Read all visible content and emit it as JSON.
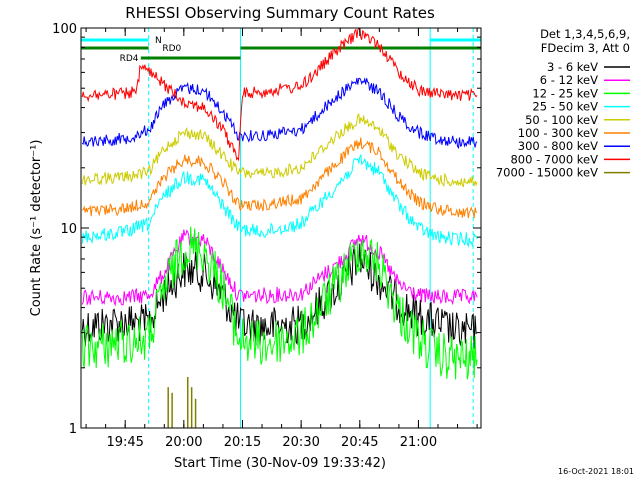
{
  "chart_data": {
    "type": "line",
    "title": "RHESSI Observing Summary Count Rates",
    "xlabel": "Start Time (30-Nov-09 19:33:42)",
    "ylabel": "Count Rate (s⁻¹ detector⁻¹)",
    "y_scale": "log",
    "ylim": [
      1,
      100
    ],
    "xlim": [
      "19:33:42",
      "21:16:00"
    ],
    "x_ticks": [
      "19:45",
      "20:00",
      "20:15",
      "20:30",
      "20:45",
      "21:00"
    ],
    "y_ticks": [
      "1",
      "10",
      "100"
    ],
    "timestamp": "16-Oct-2021 18:01",
    "legend": {
      "header_lines": [
        "Det 1,3,4,5,6,9,",
        "FDecim 3, Att 0"
      ],
      "placement": "right"
    },
    "flags": [
      {
        "label": "N",
        "color": "#00ffff",
        "segments": [
          [
            "19:33:42",
            "19:51:00"
          ],
          [
            "21:03:00",
            "21:16:00"
          ]
        ]
      },
      {
        "label": "RD0",
        "color": "#008000",
        "segments": [
          [
            "19:33:42",
            "19:51:00"
          ],
          [
            "20:14:30",
            "21:16:00"
          ]
        ]
      },
      {
        "label": "RD4",
        "color": "#008000",
        "segments": [
          [
            "19:49:00",
            "20:14:30"
          ]
        ]
      }
    ],
    "vlines": [
      {
        "time": "19:51:00",
        "style": "dashed",
        "color": "#00ffff"
      },
      {
        "time": "20:14:30",
        "style": "solid",
        "color": "#00ffff"
      },
      {
        "time": "21:03:00",
        "style": "solid",
        "color": "#00ffff"
      },
      {
        "time": "21:14:00",
        "style": "dashed",
        "color": "#00ffff"
      }
    ],
    "series": [
      {
        "name": "3 - 6 keV",
        "color": "#000000",
        "x": [
          "19:34",
          "19:45",
          "19:51",
          "19:55",
          "20:00",
          "20:05",
          "20:10",
          "20:14",
          "20:20",
          "20:30",
          "20:40",
          "20:45",
          "20:50",
          "20:55",
          "21:00",
          "21:05",
          "21:10",
          "21:15"
        ],
        "y": [
          3.2,
          3.4,
          3.3,
          4.8,
          6.2,
          6.0,
          4.6,
          3.3,
          3.2,
          3.3,
          5.2,
          7.0,
          5.5,
          4.2,
          3.6,
          3.3,
          3.0,
          3.0
        ]
      },
      {
        "name": "6 - 12 keV",
        "color": "#ff00ff",
        "x": [
          "19:34",
          "19:45",
          "19:51",
          "19:55",
          "20:00",
          "20:05",
          "20:10",
          "20:14",
          "20:20",
          "20:30",
          "20:40",
          "20:45",
          "20:50",
          "20:55",
          "21:00",
          "21:05",
          "21:10",
          "21:15"
        ],
        "y": [
          4.5,
          4.5,
          4.6,
          6.0,
          9.0,
          8.8,
          6.2,
          4.6,
          4.6,
          4.7,
          6.8,
          9.0,
          7.5,
          5.2,
          4.6,
          4.5,
          4.5,
          4.5
        ]
      },
      {
        "name": "12 - 25 keV",
        "color": "#00ff00",
        "x": [
          "19:34",
          "19:45",
          "19:51",
          "19:55",
          "20:00",
          "20:05",
          "20:10",
          "20:14",
          "20:20",
          "20:30",
          "20:40",
          "20:45",
          "20:50",
          "20:55",
          "21:00",
          "21:05",
          "21:10",
          "21:15"
        ],
        "y": [
          2.5,
          2.7,
          2.8,
          5.0,
          8.0,
          7.8,
          5.0,
          2.8,
          2.6,
          2.9,
          5.5,
          8.0,
          6.5,
          3.8,
          2.8,
          2.3,
          2.2,
          2.2
        ]
      },
      {
        "name": "25 - 50 keV",
        "color": "#00ffff",
        "x": [
          "19:34",
          "19:45",
          "19:51",
          "19:55",
          "20:00",
          "20:05",
          "20:10",
          "20:14",
          "20:20",
          "20:30",
          "20:40",
          "20:45",
          "20:50",
          "20:55",
          "21:00",
          "21:05",
          "21:10",
          "21:15"
        ],
        "y": [
          9.0,
          9.5,
          10.5,
          14.5,
          18.0,
          17.5,
          13.0,
          10.0,
          9.5,
          10.5,
          17.0,
          22.0,
          19.0,
          13.0,
          10.0,
          9.0,
          8.8,
          8.8
        ]
      },
      {
        "name": "50 - 100 keV",
        "color": "#cccc00",
        "x": [
          "19:34",
          "19:45",
          "19:51",
          "19:55",
          "20:00",
          "20:05",
          "20:10",
          "20:14",
          "20:20",
          "20:30",
          "20:40",
          "20:45",
          "20:50",
          "20:55",
          "21:00",
          "21:05",
          "21:10",
          "21:15"
        ],
        "y": [
          17.5,
          18.0,
          19.0,
          25.0,
          30.0,
          29.0,
          23.0,
          19.0,
          18.5,
          20.0,
          30.0,
          35.0,
          31.0,
          23.0,
          19.0,
          17.5,
          17.0,
          17.0
        ]
      },
      {
        "name": "100 - 300 keV",
        "color": "#ff8000",
        "x": [
          "19:34",
          "19:45",
          "19:51",
          "19:55",
          "20:00",
          "20:05",
          "20:10",
          "20:14",
          "20:20",
          "20:30",
          "20:40",
          "20:45",
          "20:50",
          "20:55",
          "21:00",
          "21:05",
          "21:10",
          "21:15"
        ],
        "y": [
          12.0,
          12.5,
          13.5,
          18.0,
          22.0,
          21.5,
          17.0,
          13.0,
          13.0,
          14.0,
          22.0,
          27.0,
          24.0,
          17.0,
          13.5,
          12.5,
          12.0,
          12.0
        ]
      },
      {
        "name": "300 - 800 keV",
        "color": "#0000ff",
        "x": [
          "19:34",
          "19:45",
          "19:51",
          "19:55",
          "20:00",
          "20:05",
          "20:10",
          "20:14",
          "20:20",
          "20:30",
          "20:40",
          "20:45",
          "20:50",
          "20:55",
          "21:00",
          "21:05",
          "21:10",
          "21:15"
        ],
        "y": [
          27.0,
          28.0,
          31.0,
          42.0,
          50.0,
          49.0,
          38.0,
          29.0,
          29.0,
          31.0,
          47.0,
          55.0,
          48.0,
          36.0,
          30.0,
          28.0,
          27.0,
          27.0
        ]
      },
      {
        "name": "800 - 7000 keV",
        "color": "#ff0000",
        "x": [
          "19:34",
          "19:45",
          "19:48",
          "19:49",
          "19:55",
          "20:00",
          "20:05",
          "20:10",
          "20:14",
          "20:15",
          "20:20",
          "20:30",
          "20:40",
          "20:45",
          "20:50",
          "20:55",
          "21:00",
          "21:05",
          "21:10",
          "21:15"
        ],
        "y": [
          46.0,
          47.0,
          48.0,
          65.0,
          52.0,
          43.0,
          40.0,
          31.0,
          22.0,
          47.0,
          48.0,
          51.0,
          80.0,
          95.0,
          82.0,
          60.0,
          49.0,
          47.0,
          46.0,
          46.0
        ]
      },
      {
        "name": "7000 - 15000 keV",
        "color": "#808000",
        "x": [
          "19:56",
          "19:57",
          "20:01",
          "20:02",
          "20:03"
        ],
        "y": [
          1.6,
          1.5,
          1.8,
          1.6,
          1.4
        ]
      }
    ]
  }
}
